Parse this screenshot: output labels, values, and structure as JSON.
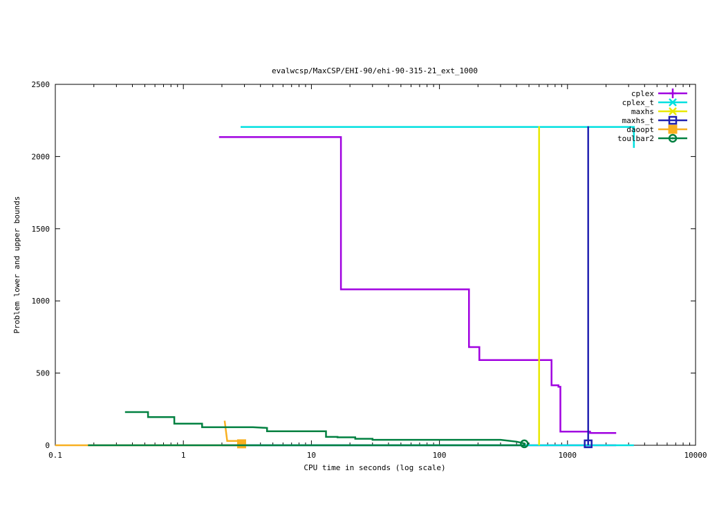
{
  "chart_data": {
    "type": "line",
    "title": "evalwcsp/MaxCSP/EHI-90/ehi-90-315-21_ext_1000",
    "xlabel": "CPU time in seconds (log scale)",
    "ylabel": "Problem lower and upper bounds",
    "xscale": "log",
    "xlim": [
      0.1,
      10000
    ],
    "ylim": [
      0,
      2500
    ],
    "x_ticks": [
      0.1,
      1,
      10,
      100,
      1000,
      10000
    ],
    "x_tick_labels": [
      "0.1",
      "1",
      "10",
      "100",
      "1000",
      "10000"
    ],
    "y_ticks": [
      0,
      500,
      1000,
      1500,
      2000,
      2500
    ],
    "y_tick_labels": [
      "0",
      "500",
      "1000",
      "1500",
      "2000",
      "2500"
    ],
    "grid": false,
    "legend_position": "top-right",
    "series": [
      {
        "name": "cplex",
        "color": "#a000e0",
        "marker": "plus",
        "points": [
          [
            1.9,
            2135
          ],
          [
            17,
            2135
          ],
          [
            17,
            1080
          ],
          [
            170,
            1080
          ],
          [
            170,
            680
          ],
          [
            205,
            680
          ],
          [
            205,
            590
          ],
          [
            750,
            590
          ],
          [
            750,
            415
          ],
          [
            850,
            415
          ],
          [
            850,
            405
          ],
          [
            880,
            405
          ],
          [
            880,
            95
          ],
          [
            1500,
            95
          ],
          [
            1500,
            85
          ],
          [
            2400,
            85
          ]
        ],
        "lower_points": [
          [
            2,
            0
          ],
          [
            2400,
            0
          ]
        ],
        "markers": []
      },
      {
        "name": "cplex_t",
        "color": "#00e0e0",
        "marker": "x",
        "points": [
          [
            2.8,
            2205
          ],
          [
            3300,
            2205
          ],
          [
            3300,
            2060
          ]
        ],
        "lower_points": [
          [
            2.8,
            0
          ],
          [
            3300,
            0
          ]
        ],
        "markers": []
      },
      {
        "name": "maxhs",
        "color": "#e8e800",
        "marker": "star",
        "points": [
          [
            600,
            0
          ],
          [
            600,
            2210
          ]
        ],
        "markers": []
      },
      {
        "name": "maxhs_t",
        "color": "#2020b0",
        "marker": "square",
        "points": [
          [
            1450,
            0
          ],
          [
            1450,
            2210
          ]
        ],
        "markers": [
          [
            1450,
            10
          ]
        ]
      },
      {
        "name": "daoopt",
        "color": "#f8b020",
        "marker": "filled-square",
        "points": [
          [
            2.1,
            170
          ],
          [
            2.2,
            30
          ],
          [
            2.85,
            30
          ],
          [
            2.85,
            10
          ]
        ],
        "lower_points": [
          [
            0.1,
            0
          ],
          [
            2.85,
            0
          ]
        ],
        "markers": [
          [
            2.85,
            10
          ]
        ]
      },
      {
        "name": "toulbar2",
        "color": "#008040",
        "marker": "circle",
        "points": [
          [
            0.35,
            230
          ],
          [
            0.53,
            230
          ],
          [
            0.53,
            195
          ],
          [
            0.85,
            195
          ],
          [
            0.85,
            150
          ],
          [
            1.4,
            150
          ],
          [
            1.4,
            125
          ],
          [
            3.5,
            125
          ],
          [
            4.5,
            120
          ],
          [
            4.5,
            97
          ],
          [
            13,
            97
          ],
          [
            13,
            58
          ],
          [
            16,
            58
          ],
          [
            16,
            55
          ],
          [
            22,
            55
          ],
          [
            22,
            45
          ],
          [
            30,
            45
          ],
          [
            30,
            38
          ],
          [
            120,
            38
          ],
          [
            300,
            38
          ],
          [
            400,
            25
          ],
          [
            450,
            15
          ],
          [
            470,
            10
          ]
        ],
        "lower_points": [
          [
            0.18,
            0
          ],
          [
            470,
            0
          ]
        ],
        "markers": [
          [
            460,
            10
          ]
        ]
      }
    ]
  }
}
